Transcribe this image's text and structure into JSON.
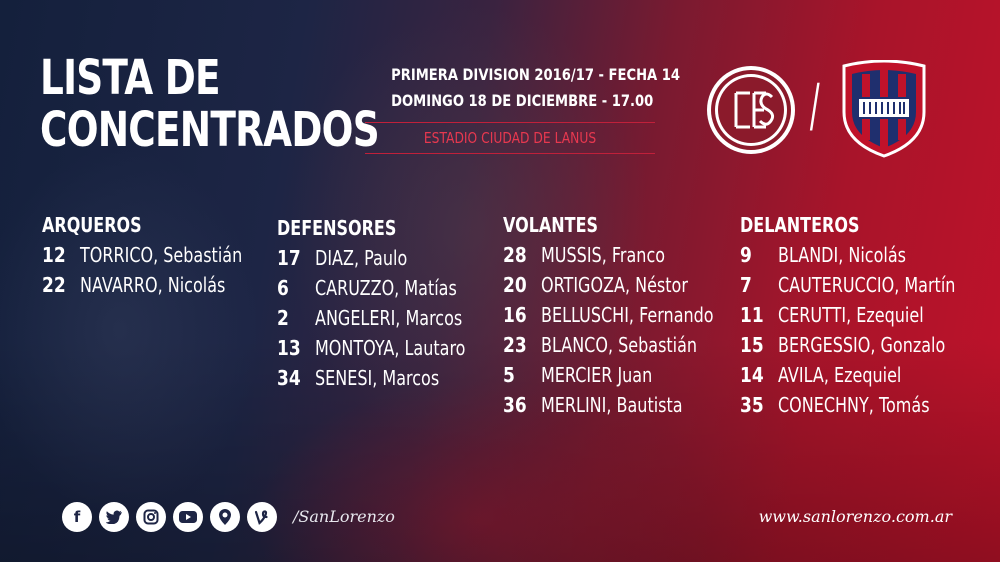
{
  "title": {
    "line1": "LISTA DE",
    "line2": "CONCENTRADOS"
  },
  "match": {
    "competition": "PRIMERA DIVISION 2016/17 - FECHA 14",
    "date": "DOMINGO 18 DE DICIEMBRE - 17.00",
    "venue": "ESTADIO CIUDAD DE LANUS",
    "separator": "/"
  },
  "colors": {
    "accent_red": "#e8384f",
    "lanus_maroon": "#8b1a2b",
    "sanlorenzo_blue": "#1f2f6e",
    "sanlorenzo_red": "#c0122a"
  },
  "squad": [
    {
      "heading": "ARQUEROS",
      "players": [
        {
          "num": "12",
          "name": "TORRICO, Sebastián"
        },
        {
          "num": "22",
          "name": "NAVARRO, Nicolás"
        }
      ]
    },
    {
      "heading": "DEFENSORES",
      "players": [
        {
          "num": "17",
          "name": "DIAZ, Paulo"
        },
        {
          "num": "6",
          "name": "CARUZZO, Matías"
        },
        {
          "num": "2",
          "name": "ANGELERI, Marcos"
        },
        {
          "num": "13",
          "name": "MONTOYA, Lautaro"
        },
        {
          "num": "34",
          "name": "SENESI, Marcos"
        }
      ]
    },
    {
      "heading": "VOLANTES",
      "players": [
        {
          "num": "28",
          "name": "MUSSIS, Franco"
        },
        {
          "num": "20",
          "name": "ORTIGOZA, Néstor"
        },
        {
          "num": "16",
          "name": "BELLUSCHI, Fernando"
        },
        {
          "num": "23",
          "name": "BLANCO, Sebastián"
        },
        {
          "num": "5",
          "name": "MERCIER Juan"
        },
        {
          "num": "36",
          "name": "MERLINI, Bautista"
        }
      ]
    },
    {
      "heading": "DELANTEROS",
      "players": [
        {
          "num": "9",
          "name": "BLANDI, Nicolás"
        },
        {
          "num": "7",
          "name": "CAUTERUCCIO, Martín"
        },
        {
          "num": "11",
          "name": "CERUTTI, Ezequiel"
        },
        {
          "num": "15",
          "name": "BERGESSIO, Gonzalo"
        },
        {
          "num": "14",
          "name": "AVILA, Ezequiel"
        },
        {
          "num": "35",
          "name": "CONECHNY, Tomás"
        }
      ]
    }
  ],
  "footer": {
    "social_icons": [
      "facebook-icon",
      "twitter-icon",
      "instagram-icon",
      "youtube-icon",
      "periscope-icon",
      "vine-icon"
    ],
    "handle": "/SanLorenzo",
    "website": "www.sanlorenzo.com.ar"
  }
}
